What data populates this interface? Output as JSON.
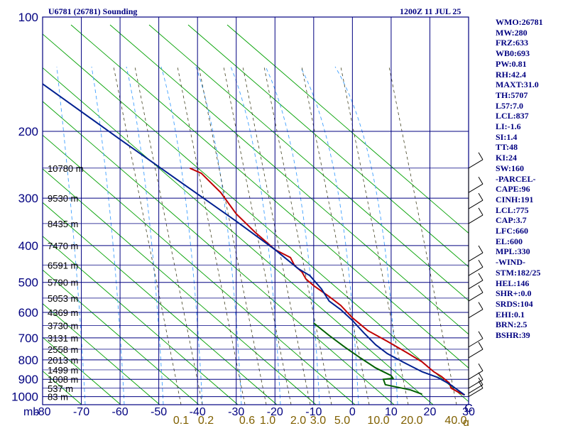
{
  "header": {
    "station": "U6781 (26781) Sounding",
    "time": "1200Z 11 JUL 25"
  },
  "stats": [
    "WMO:26781",
    "MW:280",
    "FRZ:633",
    "WB0:693",
    "PW:0.81",
    "RH:42.4",
    "MAXT:31.0",
    "TH:5707",
    "L57:7.0",
    "LCL:837",
    "LI:-1.6",
    "SI:1.4",
    "TT:48",
    "KI:24",
    "SW:160",
    "-PARCEL-",
    "CAPE:96",
    "CINH:191",
    "LCL:775",
    "CAP:3.7",
    "LFC:660",
    "EL:600",
    "MPL:330",
    "-WIND-",
    "STM:182/25",
    "HEL:146",
    "SHR+:0.0",
    "SRDS:104",
    "EHI:0.1",
    "BRN:2.5",
    "BSHR:39"
  ],
  "chart_data": {
    "type": "line",
    "title": "",
    "xlabel": "",
    "ylabel": "mb",
    "xlim": [
      -80,
      30
    ],
    "ylim": [
      1050,
      100
    ],
    "y_scale": "log-pressure",
    "x_ticks": [
      -80,
      -70,
      -60,
      -50,
      -40,
      -30,
      -20,
      -10,
      0,
      10,
      20,
      30
    ],
    "x_tick_labels": [
      "-80",
      "-70",
      "-60",
      "-50",
      "-40",
      "-30",
      "-20",
      "-10",
      "0",
      "10",
      "20",
      "30"
    ],
    "y_ticks": [
      100,
      200,
      300,
      400,
      500,
      600,
      700,
      800,
      900,
      1000
    ],
    "mixing_ratio_labels": [
      "0.1",
      "0.2",
      "0.6",
      "1.0",
      "2.0",
      "3.0",
      "5.0",
      "10.0",
      "20.0",
      "40.0"
    ],
    "mixing_ratio_unit": "g/kg",
    "mixing_ratio_unit_text": "g",
    "x_unit_text": "C",
    "height_labels": [
      {
        "p": 250,
        "text": "10780 m"
      },
      {
        "p": 300,
        "text": "9530 m"
      },
      {
        "p": 350,
        "text": "8435 m"
      },
      {
        "p": 400,
        "text": "7470 m"
      },
      {
        "p": 450,
        "text": "6591 m"
      },
      {
        "p": 500,
        "text": "5790 m"
      },
      {
        "p": 550,
        "text": "5053 m"
      },
      {
        "p": 600,
        "text": "4369 m"
      },
      {
        "p": 650,
        "text": "3730 m"
      },
      {
        "p": 700,
        "text": "3131 m"
      },
      {
        "p": 750,
        "text": "2558 m"
      },
      {
        "p": 800,
        "text": "2013 m"
      },
      {
        "p": 850,
        "text": "1499 m"
      },
      {
        "p": 900,
        "text": "1008 m"
      },
      {
        "p": 950,
        "text": "537 m"
      },
      {
        "p": 1000,
        "text": "83 m"
      }
    ],
    "series": [
      {
        "color": "#c00000",
        "points": [
          [
            -42,
            250
          ],
          [
            -39,
            258
          ],
          [
            -34,
            290
          ],
          [
            -30,
            330
          ],
          [
            -25,
            370
          ],
          [
            -20,
            410
          ],
          [
            -16,
            430
          ],
          [
            -15,
            450
          ],
          [
            -13,
            470
          ],
          [
            -12,
            490
          ],
          [
            -10,
            510
          ],
          [
            -6,
            545
          ],
          [
            -3,
            575
          ],
          [
            0,
            620
          ],
          [
            4,
            670
          ],
          [
            9,
            715
          ],
          [
            14,
            765
          ],
          [
            18,
            810
          ],
          [
            21,
            860
          ],
          [
            23,
            885
          ],
          [
            25,
            920
          ],
          [
            25.5,
            950
          ],
          [
            27.5,
            975
          ],
          [
            29,
            990
          ]
        ]
      },
      {
        "color": "#002090",
        "points": [
          [
            -80,
            150
          ],
          [
            -60,
            210
          ],
          [
            -42,
            283
          ],
          [
            -30,
            345
          ],
          [
            -20,
            410
          ],
          [
            -14,
            460
          ],
          [
            -11,
            480
          ],
          [
            -8,
            520
          ],
          [
            -6,
            560
          ],
          [
            -3,
            590
          ],
          [
            0,
            630
          ],
          [
            3,
            680
          ],
          [
            6,
            730
          ],
          [
            9,
            770
          ],
          [
            13,
            810
          ],
          [
            18,
            860
          ],
          [
            22,
            890
          ],
          [
            25,
            925
          ],
          [
            29,
            990
          ]
        ]
      },
      {
        "color": "#006000",
        "points": [
          [
            -10,
            640
          ],
          [
            -6,
            690
          ],
          [
            -2,
            740
          ],
          [
            2,
            790
          ],
          [
            6,
            840
          ],
          [
            9,
            870
          ],
          [
            10,
            880
          ],
          [
            10.5,
            895
          ],
          [
            8,
            900
          ],
          [
            8.5,
            930
          ],
          [
            15,
            960
          ],
          [
            18,
            985
          ]
        ]
      }
    ],
    "wind_barbs": [
      {
        "p": 250
      },
      {
        "p": 290
      },
      {
        "p": 320
      },
      {
        "p": 350
      },
      {
        "p": 440
      },
      {
        "p": 480
      },
      {
        "p": 520
      },
      {
        "p": 560
      },
      {
        "p": 620
      },
      {
        "p": 740
      },
      {
        "p": 790
      },
      {
        "p": 900
      },
      {
        "p": 950
      },
      {
        "p": 980
      },
      {
        "p": 1000
      }
    ]
  }
}
